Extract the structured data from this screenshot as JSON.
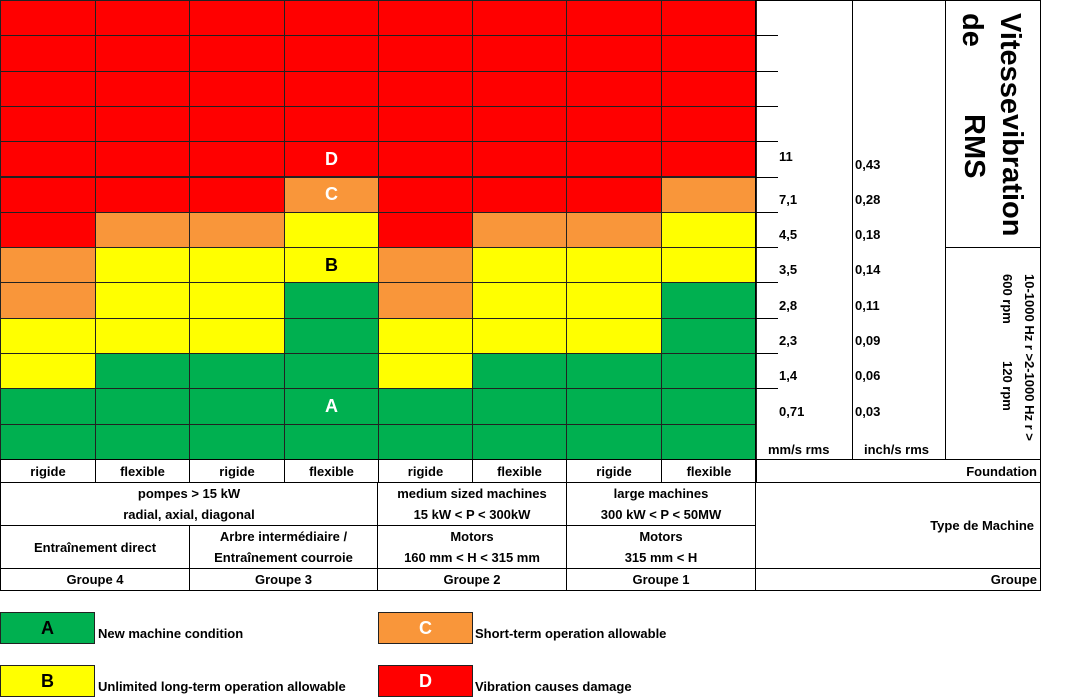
{
  "colors": {
    "A": "#00b050",
    "B": "#ffff00",
    "C": "#f9963a",
    "D": "#ff0000"
  },
  "chart_data": {
    "type": "table",
    "zones": [
      [
        "D",
        "D",
        "D",
        "D",
        "D",
        "D",
        "D",
        "D"
      ],
      [
        "D",
        "D",
        "D",
        "D",
        "D",
        "D",
        "D",
        "D"
      ],
      [
        "D",
        "D",
        "D",
        "D",
        "D",
        "D",
        "D",
        "D"
      ],
      [
        "D",
        "D",
        "D",
        "D",
        "D",
        "D",
        "D",
        "D"
      ],
      [
        "D",
        "D",
        "D",
        "D",
        "D",
        "D",
        "D",
        "D"
      ],
      [
        "D",
        "D",
        "D",
        "C",
        "D",
        "D",
        "D",
        "C"
      ],
      [
        "D",
        "C",
        "C",
        "B",
        "D",
        "C",
        "C",
        "B"
      ],
      [
        "C",
        "B",
        "B",
        "B",
        "C",
        "B",
        "B",
        "B"
      ],
      [
        "C",
        "B",
        "B",
        "A",
        "C",
        "B",
        "B",
        "A"
      ],
      [
        "B",
        "B",
        "B",
        "A",
        "B",
        "B",
        "B",
        "A"
      ],
      [
        "B",
        "A",
        "A",
        "A",
        "B",
        "A",
        "A",
        "A"
      ],
      [
        "A",
        "A",
        "A",
        "A",
        "A",
        "A",
        "A",
        "A"
      ],
      [
        "A",
        "A",
        "A",
        "A",
        "A",
        "A",
        "A",
        "A"
      ]
    ],
    "zone_labels": [
      {
        "label": "D",
        "row": 4,
        "col": 3
      },
      {
        "label": "C",
        "row": 5,
        "col": 3
      },
      {
        "label": "B",
        "row": 7,
        "col": 3
      },
      {
        "label": "A",
        "row": 11,
        "col": 3
      }
    ],
    "mm_s_values": [
      "11",
      "7,1",
      "4,5",
      "3,5",
      "2,8",
      "2,3",
      "1,4",
      "0,71"
    ],
    "inch_s_values": [
      "0,43",
      "0,28",
      "0,18",
      "0,14",
      "0,11",
      "0,09",
      "0,06",
      "0,03"
    ],
    "mm_unit": "mm/s rms",
    "inch_unit": "inch/s rms",
    "title_line1": "Vitesse de",
    "title_line2": "vibration RMS",
    "freq_line1": "10-1000 Hz r > 600 rpm",
    "freq_line2": "2-1000 Hz r > 120 rpm"
  },
  "table": {
    "foundation": [
      "rigide",
      "flexible",
      "rigide",
      "flexible",
      "rigide",
      "flexible",
      "rigide",
      "flexible"
    ],
    "foundation_label": "Foundation",
    "type_label": "Type de Machine",
    "group_label": "Groupe",
    "pumps": {
      "l1": "pompes > 15 kW",
      "l2": "radial, axial, diagonal"
    },
    "medium": {
      "l1": "medium sized machines",
      "l2": "15 kW < P < 300kW"
    },
    "large": {
      "l1": "large machines",
      "l2": "300 kW < P < 50MW"
    },
    "drive_direct": "Entraînement direct",
    "drive_belt": {
      "l1": "Arbre intermédiaire /",
      "l2": "Entraînement courroie"
    },
    "motors2": {
      "l1": "Motors",
      "l2": "160 mm < H < 315 mm"
    },
    "motors1": {
      "l1": "Motors",
      "l2": "315 mm < H"
    },
    "groups": [
      "Groupe 4",
      "Groupe 3",
      "Groupe 2",
      "Groupe 1"
    ]
  },
  "legend": [
    {
      "key": "A",
      "text": "New machine condition"
    },
    {
      "key": "B",
      "text": "Unlimited long-term operation allowable"
    },
    {
      "key": "C",
      "text": "Short-term operation allowable"
    },
    {
      "key": "D",
      "text": "Vibration causes damage"
    }
  ]
}
